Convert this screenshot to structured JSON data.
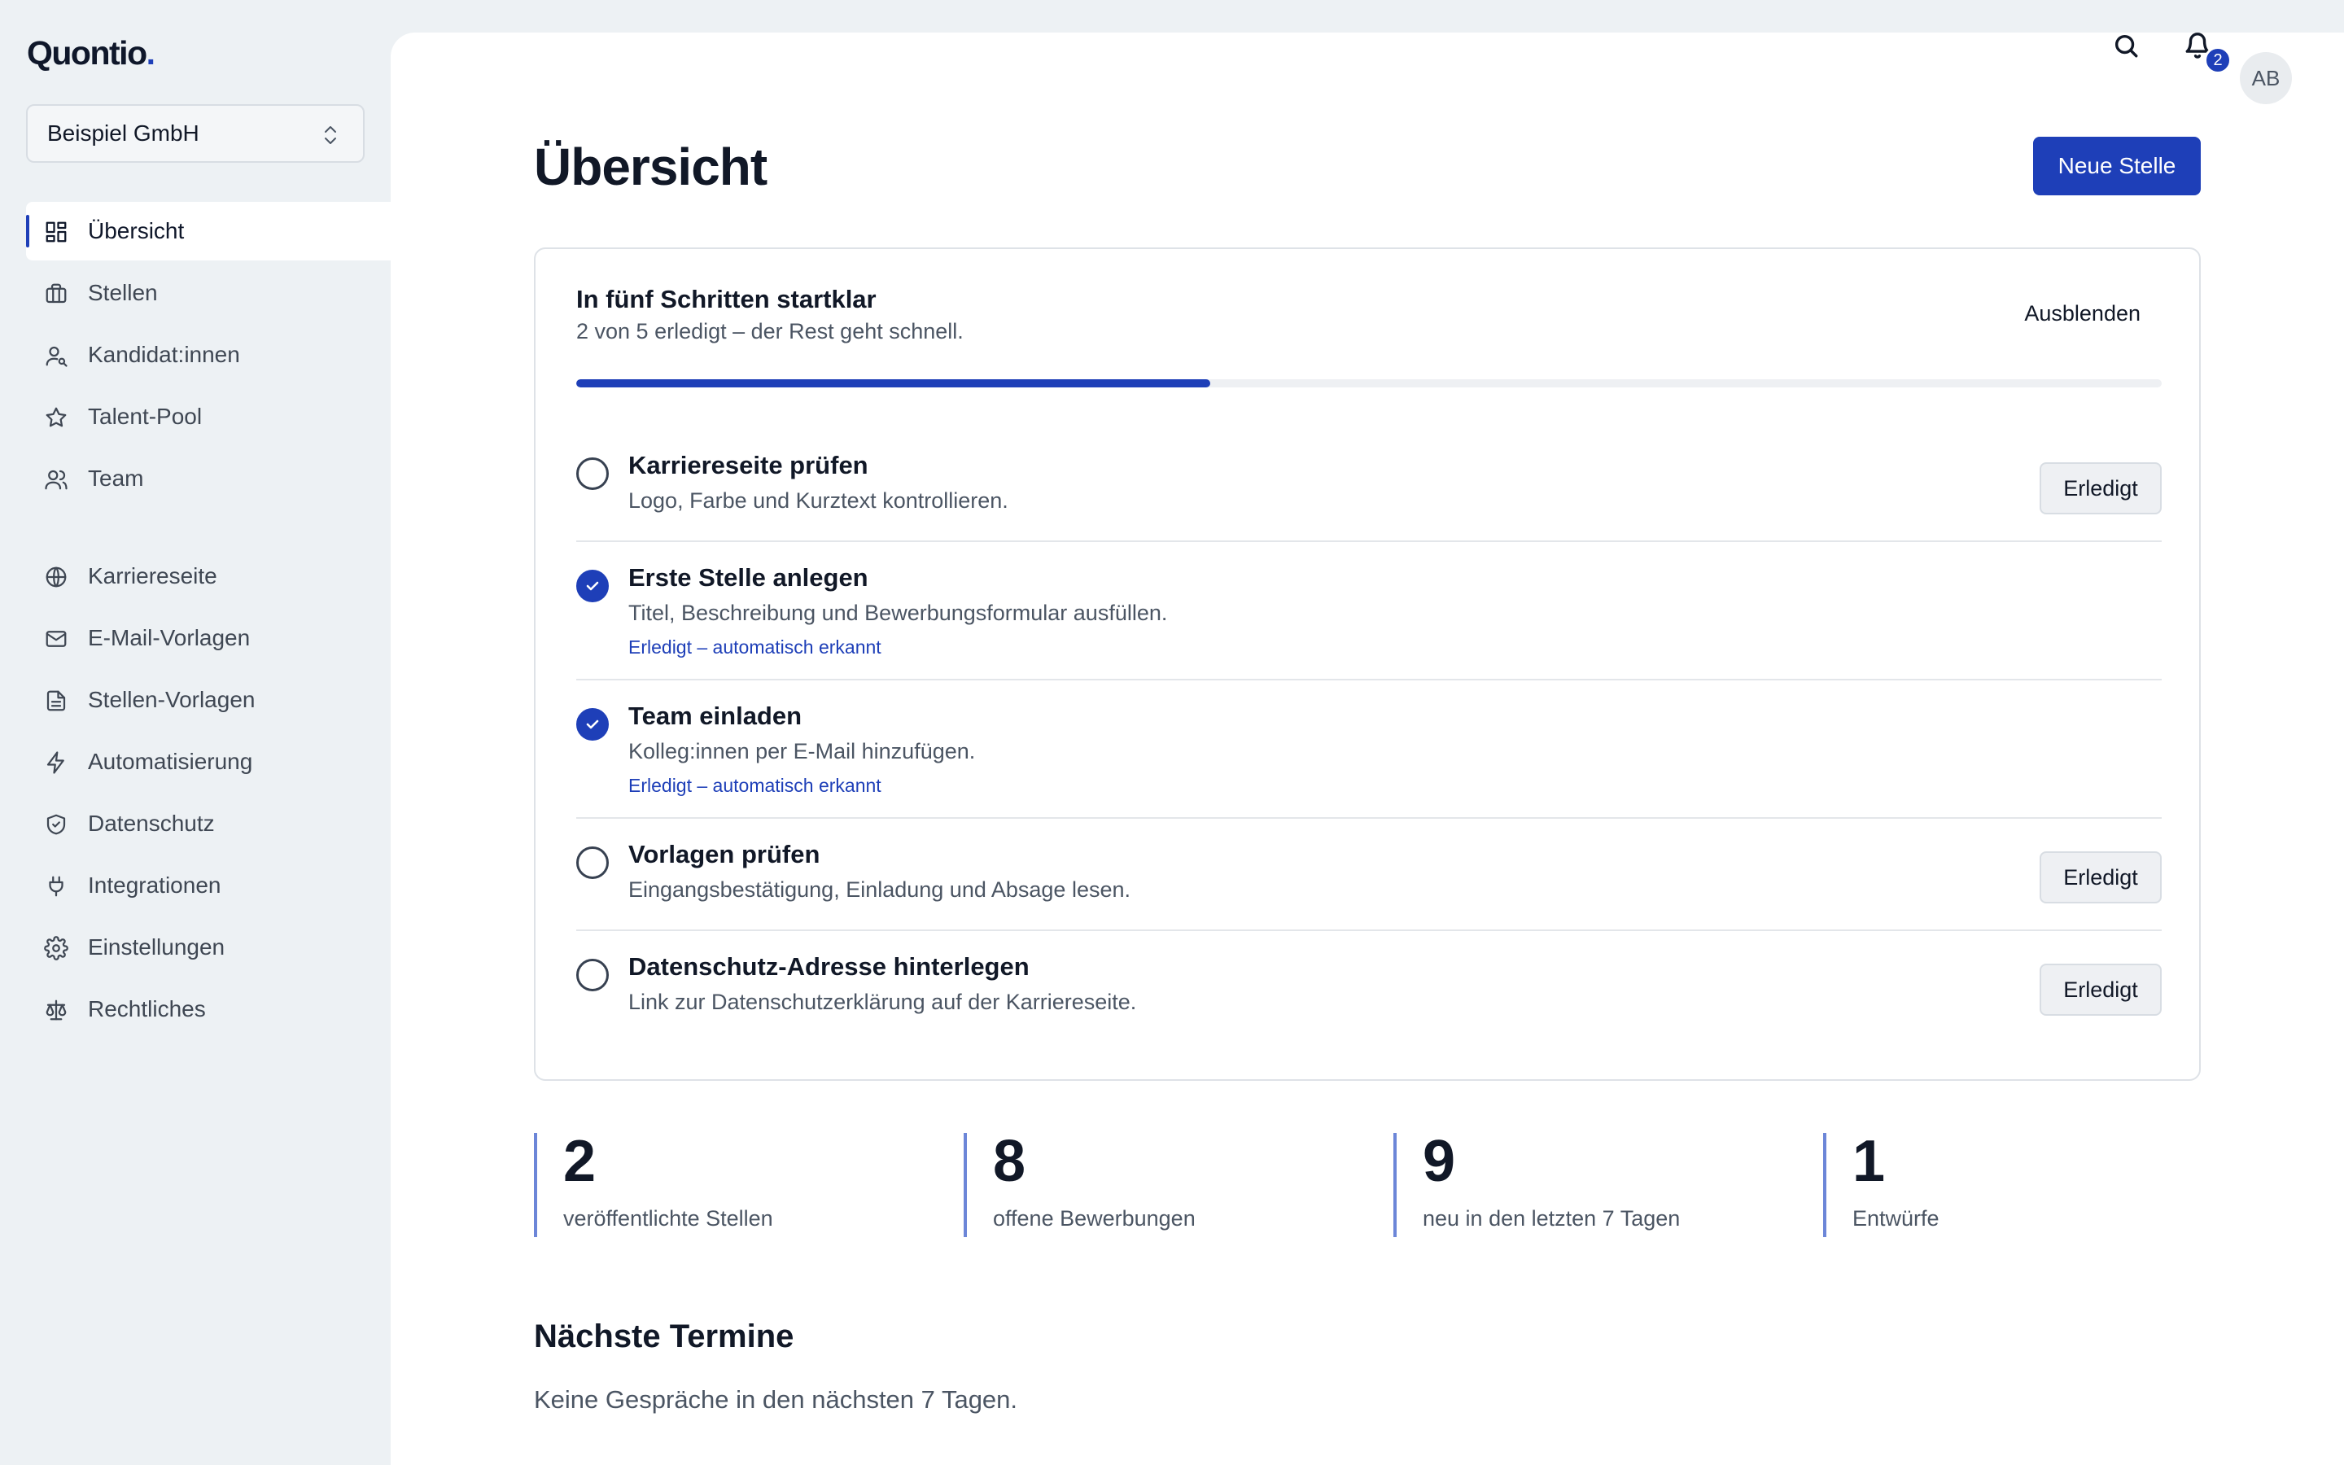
{
  "app": {
    "logo_text": "Quontio",
    "logo_dot": "."
  },
  "org_select": {
    "value": "Beispiel GmbH"
  },
  "sidebar": {
    "items": [
      {
        "label": "Übersicht",
        "icon": "dashboard-icon"
      },
      {
        "label": "Stellen",
        "icon": "briefcase-icon"
      },
      {
        "label": "Kandidat:innen",
        "icon": "user-search-icon"
      },
      {
        "label": "Talent-Pool",
        "icon": "star-icon"
      },
      {
        "label": "Team",
        "icon": "users-icon"
      },
      {
        "label": "Karriereseite",
        "icon": "globe-icon"
      },
      {
        "label": "E-Mail-Vorlagen",
        "icon": "mail-icon"
      },
      {
        "label": "Stellen-Vorlagen",
        "icon": "document-icon"
      },
      {
        "label": "Automatisierung",
        "icon": "lightning-icon"
      },
      {
        "label": "Datenschutz",
        "icon": "shield-check-icon"
      },
      {
        "label": "Integrationen",
        "icon": "plug-icon"
      },
      {
        "label": "Einstellungen",
        "icon": "gear-icon"
      },
      {
        "label": "Rechtliches",
        "icon": "scale-icon"
      }
    ]
  },
  "topbar": {
    "notification_count": "2",
    "avatar_initials": "AB"
  },
  "page": {
    "title": "Übersicht",
    "primary_button": "Neue Stelle"
  },
  "onboarding": {
    "title": "In fünf Schritten startklar",
    "subtitle": "2 von 5 erledigt – der Rest geht schnell.",
    "hide_label": "Ausblenden",
    "progress": 0.4,
    "steps": [
      {
        "title": "Karriereseite prüfen",
        "desc": "Logo, Farbe und Kurztext kontrollieren.",
        "done": false,
        "button": "Erledigt"
      },
      {
        "title": "Erste Stelle anlegen",
        "desc": "Titel, Beschreibung und Bewerbungsformular ausfüllen.",
        "done": true,
        "auto": "Erledigt – automatisch erkannt"
      },
      {
        "title": "Team einladen",
        "desc": "Kolleg:innen per E-Mail hinzufügen.",
        "done": true,
        "auto": "Erledigt – automatisch erkannt"
      },
      {
        "title": "Vorlagen prüfen",
        "desc": "Eingangsbestätigung, Einladung und Absage lesen.",
        "done": false,
        "button": "Erledigt"
      },
      {
        "title": "Datenschutz-Adresse hinterlegen",
        "desc": "Link zur Datenschutzerklärung auf der Karriereseite.",
        "done": false,
        "button": "Erledigt"
      }
    ]
  },
  "stats": [
    {
      "value": "2",
      "label": "veröffentlichte Stellen"
    },
    {
      "value": "8",
      "label": "offene Bewerbungen"
    },
    {
      "value": "9",
      "label": "neu in den letzten 7 Tagen"
    },
    {
      "value": "1",
      "label": "Entwürfe"
    }
  ],
  "appointments": {
    "title": "Nächste Termine",
    "empty": "Keine Gespräche in den nächsten 7 Tagen."
  },
  "colors": {
    "accent": "#1e3fb8",
    "sidebar_bg": "#edf1f4"
  }
}
